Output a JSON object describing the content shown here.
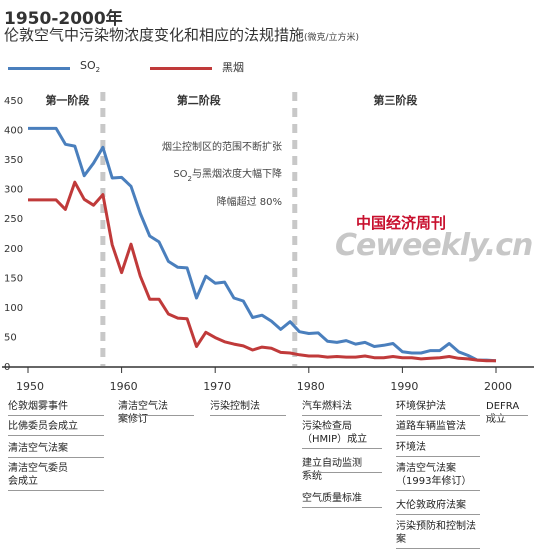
{
  "header": {
    "title": "1950-2000年",
    "subtitle": "伦敦空气中污染物浓度变化和相应的法规措施",
    "unit": "(微克/立方米)"
  },
  "legend": {
    "so2": "SO2",
    "smoke": "黑烟"
  },
  "colors": {
    "so2": "#4a7fbd",
    "smoke": "#c03a3a",
    "divider": "#c8c8c8",
    "axis": "#333333"
  },
  "chart_data": {
    "type": "line",
    "title": "1950-2000年",
    "ylabel": "(微克/立方米)",
    "ylim": [
      0,
      450
    ],
    "xlim": [
      1950,
      2000
    ],
    "yticks": [
      0,
      50,
      100,
      150,
      200,
      250,
      300,
      350,
      400,
      450
    ],
    "xticks": [
      1950,
      1960,
      1970,
      1980,
      1990,
      2000
    ],
    "legend_position": "top-left",
    "grid": false,
    "phases": [
      {
        "label": "第一阶段",
        "end": 1958
      },
      {
        "label": "第二阶段",
        "end": 1978.5
      },
      {
        "label": "第三阶段",
        "end": 2000
      }
    ],
    "series": [
      {
        "name": "SO2",
        "x": [
          1950,
          1951,
          1952,
          1953,
          1954,
          1955,
          1956,
          1957,
          1958,
          1959,
          1960,
          1961,
          1962,
          1963,
          1964,
          1965,
          1966,
          1967,
          1968,
          1969,
          1970,
          1971,
          1972,
          1973,
          1974,
          1975,
          1976,
          1977,
          1978,
          1979,
          1980,
          1981,
          1982,
          1983,
          1984,
          1985,
          1986,
          1987,
          1988,
          1989,
          1990,
          1991,
          1992,
          1993,
          1994,
          1995,
          1996,
          1997,
          1998,
          1999,
          2000
        ],
        "values": [
          402,
          402,
          402,
          402,
          375,
          372,
          322,
          343,
          370,
          318,
          319,
          304,
          258,
          220,
          210,
          177,
          167,
          166,
          115,
          152,
          140,
          142,
          115,
          110,
          82,
          86,
          76,
          62,
          75,
          58,
          55,
          56,
          42,
          40,
          43,
          37,
          40,
          33,
          35,
          38,
          24,
          22,
          22,
          26,
          26,
          38,
          24,
          18,
          10,
          10,
          9
        ]
      },
      {
        "name": "黑烟",
        "x": [
          1950,
          1951,
          1952,
          1953,
          1954,
          1955,
          1956,
          1957,
          1958,
          1959,
          1960,
          1961,
          1962,
          1963,
          1964,
          1965,
          1966,
          1967,
          1968,
          1969,
          1970,
          1971,
          1972,
          1973,
          1974,
          1975,
          1976,
          1977,
          1978,
          1979,
          1980,
          1981,
          1982,
          1983,
          1984,
          1985,
          1986,
          1987,
          1988,
          1989,
          1990,
          1991,
          1992,
          1993,
          1994,
          1995,
          1996,
          1997,
          1998,
          1999,
          2000
        ],
        "values": [
          281,
          281,
          281,
          281,
          265,
          311,
          282,
          272,
          290,
          205,
          158,
          206,
          152,
          113,
          113,
          88,
          81,
          80,
          33,
          57,
          48,
          41,
          37,
          34,
          27,
          32,
          30,
          23,
          22,
          19,
          17,
          17,
          15,
          16,
          15,
          15,
          17,
          14,
          14,
          16,
          14,
          14,
          12,
          13,
          14,
          16,
          13,
          12,
          10,
          9,
          9
        ]
      }
    ],
    "annotations": [
      "烟尘控制区的范围不断扩张",
      "SO2与黑烟浓度大幅下降",
      "降幅超过 80%"
    ]
  },
  "events": {
    "col1": [
      "伦敦烟雾事件",
      "比佛委员会成立",
      "清洁空气法案",
      "清洁空气委员会成立"
    ],
    "col2": [
      "清洁空气法案修订"
    ],
    "col3": [
      "污染控制法"
    ],
    "col4": [
      "汽车燃料法",
      "污染检查局（HMIP）成立",
      "建立自动监测系统",
      "空气质量标准"
    ],
    "col5": [
      "环境保护法",
      "道路车辆监管法",
      "环境法",
      "清洁空气法案（1993年修订）",
      "大伦敦政府法案",
      "污染预防和控制法案"
    ],
    "col6": [
      "DEFRA成立"
    ]
  },
  "watermark": {
    "cn": "中国经济周刊",
    "en": "Ceweekly.cn"
  }
}
